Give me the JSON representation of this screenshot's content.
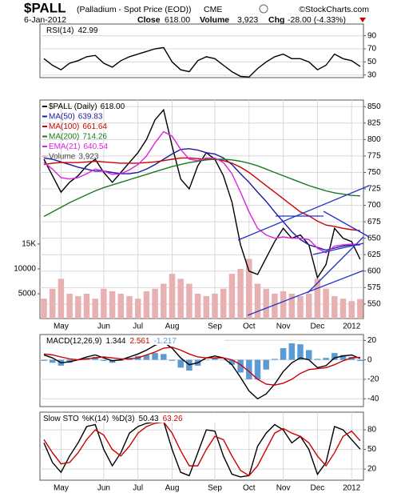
{
  "header": {
    "symbol": "$PALL",
    "name": "(Palladium - Spot Price (EOD))",
    "exchange": "CME",
    "date": "6-Jan-2012",
    "copyright": "©StockCharts.com",
    "close_label": "Close",
    "close": "618.00",
    "volume_label": "Volume",
    "volume": "3,923",
    "change_label": "Chg",
    "change": "-28.00 (-4.33%)"
  },
  "chart_data": [
    {
      "type": "line",
      "ylim": [
        26,
        108
      ],
      "yticks": [
        30,
        50,
        70,
        90
      ],
      "grid": true,
      "series": [
        {
          "name": "RSI(14)",
          "legend_value": "42.99",
          "color": "#000000",
          "values": [
            55,
            45,
            38,
            48,
            52,
            58,
            60,
            48,
            42,
            52,
            58,
            62,
            66,
            70,
            72,
            50,
            38,
            35,
            52,
            58,
            55,
            45,
            35,
            28,
            27,
            40,
            50,
            58,
            62,
            55,
            55,
            50,
            38,
            45,
            62,
            55,
            52,
            42.99
          ]
        }
      ]
    },
    {
      "type": "line",
      "ylim": [
        528,
        860
      ],
      "yticks": [
        550,
        575,
        600,
        625,
        650,
        675,
        700,
        725,
        750,
        775,
        800,
        825,
        850
      ],
      "grid": true,
      "y2lim": [
        0,
        44000
      ],
      "y2ticks": [
        5000,
        10000,
        {
          "value": 15000,
          "label": "15K"
        }
      ],
      "categories": [
        null,
        null,
        "May",
        null,
        null,
        null,
        null,
        "Jun",
        null,
        null,
        null,
        "Jul",
        null,
        null,
        null,
        "Aug",
        null,
        null,
        null,
        null,
        "Sep",
        null,
        null,
        null,
        "Oct",
        null,
        null,
        null,
        "Nov",
        null,
        null,
        null,
        "Dec",
        null,
        null,
        null,
        "2012",
        null
      ],
      "series": [
        {
          "name": "$PALL (Daily)",
          "legend_value": "618.00",
          "color": "#000000",
          "values": [
            770,
            745,
            720,
            735,
            745,
            760,
            770,
            750,
            735,
            750,
            765,
            780,
            800,
            830,
            845,
            790,
            740,
            725,
            760,
            780,
            770,
            745,
            705,
            640,
            600,
            595,
            620,
            645,
            665,
            650,
            655,
            640,
            590,
            610,
            665,
            650,
            645,
            618
          ]
        },
        {
          "name": "MA(50)",
          "legend_value": "639.83",
          "color": "#1a1aa0",
          "values": [
            772,
            770,
            766,
            762,
            758,
            755,
            752,
            752,
            750,
            748,
            748,
            750,
            755,
            762,
            770,
            778,
            785,
            786,
            784,
            780,
            778,
            772,
            762,
            748,
            735,
            720,
            706,
            690,
            675,
            660,
            648,
            640,
            636,
            632,
            635,
            638,
            640,
            639.83
          ]
        },
        {
          "name": "MA(100)",
          "legend_value": "661.64",
          "color": "#cc0000",
          "values": [
            762,
            764,
            765,
            765,
            765,
            766,
            767,
            766,
            765,
            764,
            764,
            764,
            765,
            766,
            768,
            770,
            772,
            772,
            771,
            770,
            770,
            768,
            764,
            758,
            750,
            740,
            730,
            720,
            710,
            700,
            690,
            684,
            676,
            670,
            668,
            665,
            663,
            661.64
          ]
        },
        {
          "name": "MA(200)",
          "legend_value": "714.26",
          "color": "#1a7a1a",
          "values": [
            683,
            690,
            697,
            704,
            710,
            716,
            722,
            727,
            731,
            735,
            739,
            743,
            747,
            751,
            755,
            759,
            762,
            765,
            767,
            769,
            770,
            770,
            769,
            767,
            764,
            760,
            755,
            750,
            745,
            740,
            735,
            730,
            726,
            722,
            719,
            717,
            715,
            714.26
          ]
        },
        {
          "name": "EMA(21)",
          "legend_value": "640.54",
          "color": "#e020e0",
          "values": [
            765,
            755,
            742,
            740,
            742,
            748,
            755,
            752,
            747,
            748,
            754,
            762,
            775,
            795,
            812,
            805,
            785,
            770,
            768,
            772,
            772,
            765,
            748,
            720,
            690,
            665,
            655,
            650,
            652,
            650,
            650,
            648,
            635,
            628,
            638,
            640,
            641,
            640.54
          ]
        },
        {
          "name": "Volume",
          "legend_value": "3,923",
          "color": "#e8b0b0",
          "type": "bar",
          "axis": "y2",
          "values": [
            4000,
            6000,
            8000,
            5000,
            4500,
            5000,
            4000,
            6000,
            5500,
            5000,
            4500,
            4000,
            5500,
            6000,
            7000,
            9000,
            8000,
            7000,
            5000,
            4500,
            5000,
            6000,
            9000,
            10000,
            12000,
            7000,
            6000,
            5000,
            5500,
            5000,
            4500,
            5000,
            8000,
            6000,
            4500,
            4000,
            3500,
            3923
          ]
        }
      ]
    },
    {
      "type": "line",
      "ylim": [
        -48,
        26
      ],
      "yticks": [
        -40,
        -20,
        0,
        20
      ],
      "grid": true,
      "series": [
        {
          "name": "MACD(12,26,9)",
          "legend_value": "1.344",
          "color": "#000000",
          "values": [
            5,
            2,
            -3,
            -2,
            0,
            3,
            5,
            2,
            -1,
            0,
            3,
            6,
            10,
            15,
            18,
            12,
            2,
            -5,
            -3,
            2,
            4,
            2,
            -5,
            -18,
            -32,
            -40,
            -35,
            -25,
            -12,
            -3,
            2,
            0,
            -8,
            -6,
            2,
            4,
            5,
            1.344
          ]
        },
        {
          "legend_value": "2.561",
          "color": "#cc0000",
          "values": [
            6,
            5,
            3,
            1,
            0,
            1,
            2,
            3,
            2,
            1,
            1,
            2,
            5,
            8,
            12,
            13,
            10,
            6,
            3,
            2,
            2,
            2,
            0,
            -5,
            -12,
            -20,
            -25,
            -26,
            -24,
            -20,
            -14,
            -10,
            -9,
            -8,
            -5,
            -1,
            2,
            2.561
          ]
        },
        {
          "legend_value": "-1.217",
          "color": "#5b9bd5",
          "type": "bar",
          "values": [
            -1,
            -3,
            -6,
            -3,
            0,
            2,
            3,
            -1,
            -3,
            -1,
            2,
            4,
            5,
            7,
            6,
            -1,
            -8,
            -11,
            -6,
            0,
            2,
            0,
            -5,
            -13,
            -20,
            -20,
            -10,
            1,
            12,
            17,
            16,
            10,
            1,
            2,
            7,
            5,
            3,
            -1.217
          ]
        }
      ]
    },
    {
      "type": "line",
      "title": "Slow STO",
      "ylim": [
        3,
        107
      ],
      "yticks": [
        20,
        50,
        80
      ],
      "grid": true,
      "categories": [
        null,
        null,
        "May",
        null,
        null,
        null,
        null,
        "Jun",
        null,
        null,
        null,
        "Jul",
        null,
        null,
        null,
        "Aug",
        null,
        null,
        null,
        null,
        "Sep",
        null,
        null,
        null,
        "Oct",
        null,
        null,
        null,
        "Nov",
        null,
        null,
        null,
        "Dec",
        null,
        null,
        null,
        "2012",
        null
      ],
      "series": [
        {
          "name": "%K(14)",
          "legend_value": "50.43",
          "color": "#000000",
          "values": [
            60,
            30,
            15,
            40,
            60,
            85,
            88,
            50,
            25,
            45,
            75,
            85,
            90,
            92,
            93,
            50,
            15,
            10,
            45,
            80,
            78,
            40,
            12,
            8,
            10,
            55,
            75,
            88,
            80,
            60,
            70,
            50,
            12,
            30,
            85,
            80,
            65,
            50.43
          ]
        },
        {
          "name": "%D(3)",
          "legend_value": "63.26",
          "color": "#cc0000",
          "values": [
            65,
            45,
            28,
            30,
            45,
            65,
            80,
            72,
            50,
            40,
            55,
            75,
            85,
            90,
            92,
            75,
            48,
            25,
            25,
            50,
            70,
            65,
            40,
            18,
            10,
            25,
            50,
            75,
            82,
            75,
            70,
            60,
            40,
            25,
            45,
            70,
            78,
            63.26
          ]
        }
      ]
    }
  ]
}
